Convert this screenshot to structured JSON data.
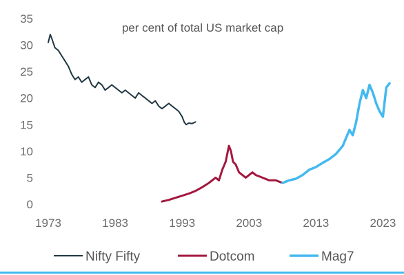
{
  "chart_data": {
    "type": "line",
    "title": "per cent of total US market cap",
    "xlabel": "",
    "ylabel": "",
    "xlim": [
      1973,
      2024.5
    ],
    "ylim": [
      0,
      35
    ],
    "x_ticks": [
      1973,
      1983,
      1993,
      2003,
      2013,
      2023
    ],
    "y_ticks": [
      0,
      5,
      10,
      15,
      20,
      25,
      30,
      35
    ],
    "grid": false,
    "legend_position": "bottom",
    "series": [
      {
        "name": "Nifty Fifty",
        "color": "#1f3640",
        "x": [
          1973.0,
          1973.3,
          1973.6,
          1974.0,
          1974.5,
          1975.0,
          1975.5,
          1976.0,
          1976.5,
          1977.0,
          1977.5,
          1978.0,
          1978.5,
          1979.0,
          1979.5,
          1980.0,
          1980.5,
          1981.0,
          1981.5,
          1982.0,
          1982.5,
          1983.0,
          1983.5,
          1984.0,
          1984.5,
          1985.0,
          1985.5,
          1986.0,
          1986.5,
          1987.0,
          1987.5,
          1988.0,
          1988.5,
          1989.0,
          1989.5,
          1990.0,
          1990.5,
          1991.0,
          1991.5,
          1992.0,
          1992.5,
          1993.0,
          1993.3,
          1993.6,
          1994.0,
          1994.5,
          1995.0
        ],
        "values": [
          30.5,
          32.0,
          31.0,
          29.5,
          29.0,
          28.0,
          27.0,
          26.0,
          24.5,
          23.5,
          24.0,
          23.0,
          23.5,
          24.0,
          22.5,
          22.0,
          23.0,
          22.5,
          21.5,
          22.0,
          22.5,
          22.0,
          21.5,
          21.0,
          21.5,
          21.0,
          20.5,
          20.0,
          21.0,
          20.5,
          20.0,
          19.5,
          19.0,
          19.5,
          18.5,
          18.0,
          18.5,
          19.0,
          18.5,
          18.0,
          17.5,
          16.5,
          15.5,
          15.0,
          15.3,
          15.2,
          15.5
        ]
      },
      {
        "name": "Dotcom",
        "color": "#a3173f",
        "x": [
          1990.0,
          1991.0,
          1992.0,
          1993.0,
          1994.0,
          1995.0,
          1996.0,
          1997.0,
          1998.0,
          1998.5,
          1999.0,
          1999.5,
          2000.0,
          2000.3,
          2000.6,
          2001.0,
          2001.5,
          2002.0,
          2002.5,
          2003.0,
          2003.5,
          2004.0,
          2005.0,
          2006.0,
          2007.0,
          2008.0
        ],
        "values": [
          0.5,
          0.8,
          1.2,
          1.6,
          2.0,
          2.5,
          3.2,
          4.0,
          5.0,
          4.5,
          6.5,
          8.0,
          11.0,
          10.0,
          8.0,
          7.5,
          6.0,
          5.5,
          5.0,
          5.5,
          6.0,
          5.5,
          5.0,
          4.5,
          4.5,
          4.0
        ]
      },
      {
        "name": "Mag7",
        "color": "#43b9ef",
        "x": [
          2008.0,
          2009.0,
          2010.0,
          2011.0,
          2012.0,
          2013.0,
          2014.0,
          2015.0,
          2016.0,
          2017.0,
          2017.5,
          2018.0,
          2018.5,
          2019.0,
          2019.5,
          2020.0,
          2020.5,
          2021.0,
          2021.5,
          2022.0,
          2022.5,
          2023.0,
          2023.5,
          2024.0
        ],
        "values": [
          4.0,
          4.5,
          4.8,
          5.5,
          6.5,
          7.0,
          7.8,
          8.5,
          9.5,
          11.0,
          12.5,
          14.0,
          13.0,
          15.5,
          19.0,
          21.5,
          20.0,
          22.5,
          21.0,
          19.0,
          17.5,
          16.5,
          22.0,
          22.8
        ]
      }
    ]
  }
}
